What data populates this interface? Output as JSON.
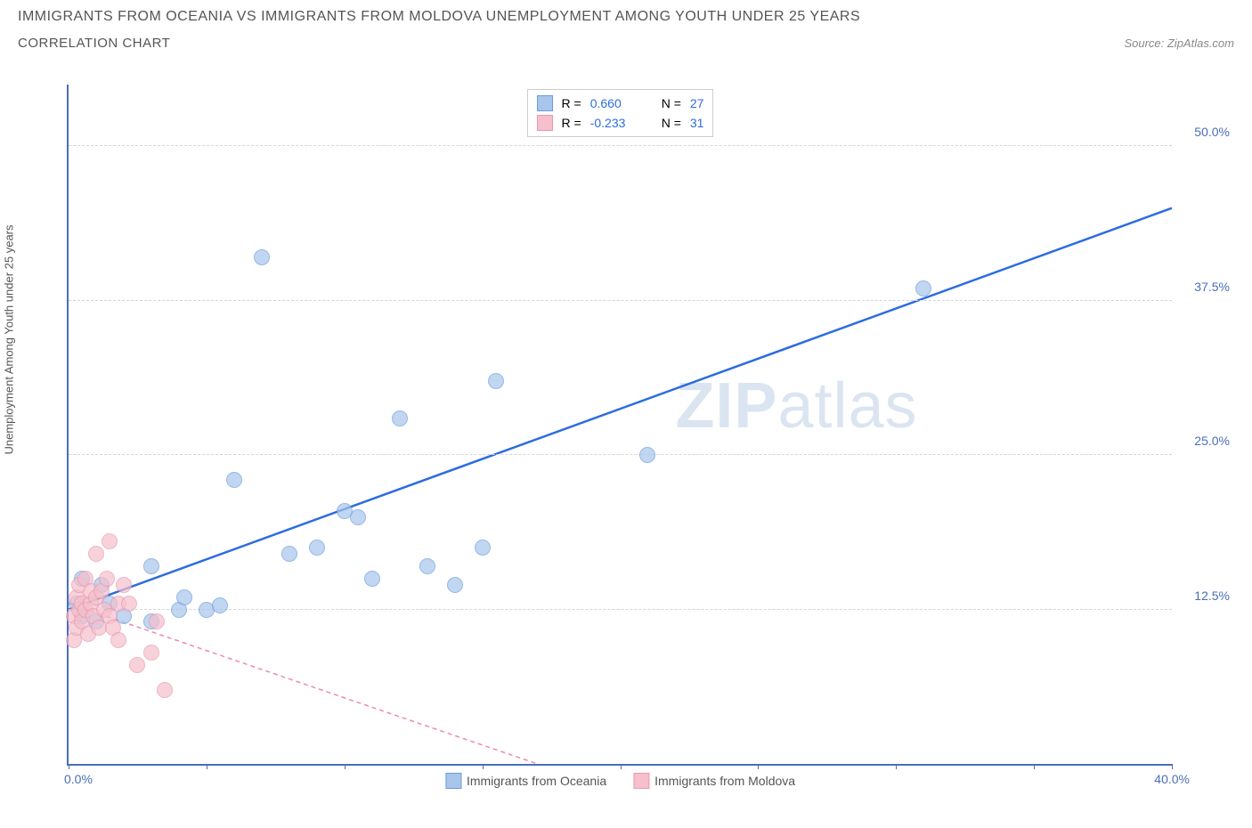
{
  "title": "IMMIGRANTS FROM OCEANIA VS IMMIGRANTS FROM MOLDOVA UNEMPLOYMENT AMONG YOUTH UNDER 25 YEARS",
  "subtitle": "CORRELATION CHART",
  "source_label": "Source: ",
  "source_name": "ZipAtlas.com",
  "watermark_a": "ZIP",
  "watermark_b": "atlas",
  "chart": {
    "type": "scatter",
    "ylabel": "Unemployment Among Youth under 25 years",
    "xlim": [
      0,
      40
    ],
    "ylim": [
      0,
      55
    ],
    "xtick_positions": [
      0,
      5,
      10,
      15,
      20,
      25,
      30,
      35,
      40
    ],
    "xlabel_min": "0.0%",
    "xlabel_max": "40.0%",
    "ytick_labels": [
      {
        "v": 12.5,
        "t": "12.5%"
      },
      {
        "v": 25.0,
        "t": "25.0%"
      },
      {
        "v": 37.5,
        "t": "37.5%"
      },
      {
        "v": 50.0,
        "t": "50.0%"
      }
    ],
    "grid_y": [
      12.5,
      25.0,
      37.5,
      50.0
    ],
    "grid_color": "#d5d5d5",
    "axis_color": "#4a6fb8",
    "background_color": "#ffffff",
    "series": [
      {
        "name": "Immigrants from Oceania",
        "color_fill": "#a8c5eb",
        "color_stroke": "#6b9be0",
        "line_color": "#2d6cdf",
        "line_dash": "none",
        "line_width": 2.5,
        "r_label": "R =",
        "r_value": "0.660",
        "n_label": "N =",
        "n_value": "27",
        "trend": {
          "x1": 0,
          "y1": 12.5,
          "x2": 40,
          "y2": 45
        },
        "points": [
          [
            0.3,
            13
          ],
          [
            0.5,
            12
          ],
          [
            0.5,
            15
          ],
          [
            1,
            11.5
          ],
          [
            1.2,
            14.5
          ],
          [
            1.5,
            13
          ],
          [
            2,
            12
          ],
          [
            3,
            11.5
          ],
          [
            3,
            16
          ],
          [
            4,
            12.5
          ],
          [
            4.2,
            13.5
          ],
          [
            5,
            12.5
          ],
          [
            5.5,
            12.8
          ],
          [
            6,
            23
          ],
          [
            7,
            41
          ],
          [
            8,
            17
          ],
          [
            9,
            17.5
          ],
          [
            10,
            20.5
          ],
          [
            10.5,
            20
          ],
          [
            11,
            15
          ],
          [
            12,
            28
          ],
          [
            13,
            16
          ],
          [
            14,
            14.5
          ],
          [
            15,
            17.5
          ],
          [
            15.5,
            31
          ],
          [
            21,
            25
          ],
          [
            31,
            38.5
          ]
        ]
      },
      {
        "name": "Immigrants from Moldova",
        "color_fill": "#f5c0cc",
        "color_stroke": "#eb97ad",
        "line_color": "#f08aa5",
        "line_dash": "5,4",
        "line_width": 1.5,
        "r_label": "R =",
        "r_value": "-0.233",
        "n_label": "N =",
        "n_value": "31",
        "trend": {
          "x1": 0,
          "y1": 13,
          "x2": 17,
          "y2": 0
        },
        "points": [
          [
            0.2,
            10
          ],
          [
            0.2,
            12
          ],
          [
            0.3,
            11
          ],
          [
            0.3,
            13.5
          ],
          [
            0.4,
            12.5
          ],
          [
            0.4,
            14.5
          ],
          [
            0.5,
            11.5
          ],
          [
            0.5,
            13
          ],
          [
            0.6,
            15
          ],
          [
            0.6,
            12.5
          ],
          [
            0.7,
            10.5
          ],
          [
            0.8,
            13
          ],
          [
            0.8,
            14
          ],
          [
            0.9,
            12
          ],
          [
            1,
            13.5
          ],
          [
            1,
            17
          ],
          [
            1.1,
            11
          ],
          [
            1.2,
            14
          ],
          [
            1.3,
            12.5
          ],
          [
            1.4,
            15
          ],
          [
            1.5,
            18
          ],
          [
            1.5,
            12
          ],
          [
            1.6,
            11
          ],
          [
            1.8,
            13
          ],
          [
            1.8,
            10
          ],
          [
            2,
            14.5
          ],
          [
            2.2,
            13
          ],
          [
            2.5,
            8
          ],
          [
            3,
            9
          ],
          [
            3.2,
            11.5
          ],
          [
            3.5,
            6
          ]
        ]
      }
    ]
  }
}
